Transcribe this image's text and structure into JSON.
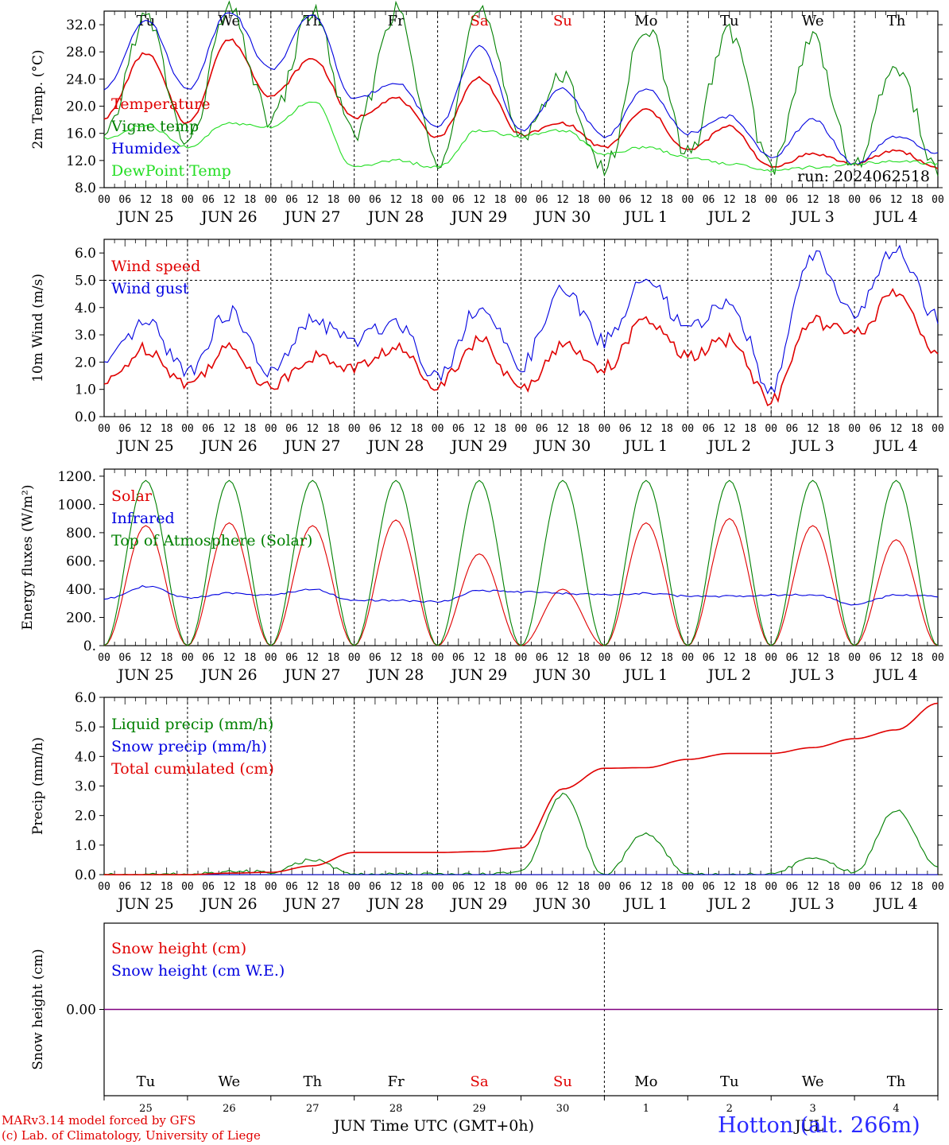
{
  "meta": {
    "run_label": "run: 2024062518",
    "model_label": "MARv3.14 model forced by GFS",
    "copyright_label": "(c) Lab. of Climatology, University of Liege",
    "xaxis_title": "Time UTC (GMT+0h)",
    "month_label_jun": "JUN",
    "month_label_jul": "JUL",
    "station_label": "Hotton (alt. 266m)"
  },
  "time_axis": {
    "hour_ticks": [
      "00",
      "06",
      "12",
      "18"
    ],
    "days": [
      {
        "date": "JUN 25",
        "weekday": "Tu",
        "num": "25",
        "weekend": false
      },
      {
        "date": "JUN 26",
        "weekday": "We",
        "num": "26",
        "weekend": false
      },
      {
        "date": "JUN 27",
        "weekday": "Th",
        "num": "27",
        "weekend": false
      },
      {
        "date": "JUN 28",
        "weekday": "Fr",
        "num": "28",
        "weekend": false
      },
      {
        "date": "JUN 29",
        "weekday": "Sa",
        "num": "29",
        "weekend": true
      },
      {
        "date": "JUN 30",
        "weekday": "Su",
        "num": "30",
        "weekend": true
      },
      {
        "date": "JUL 1",
        "weekday": "Mo",
        "num": "1",
        "weekend": false
      },
      {
        "date": "JUL 2",
        "weekday": "Tu",
        "num": "2",
        "weekend": false
      },
      {
        "date": "JUL 3",
        "weekday": "We",
        "num": "3",
        "weekend": false
      },
      {
        "date": "JUL 4",
        "weekday": "Th",
        "num": "4",
        "weekend": false
      }
    ]
  },
  "colors": {
    "red": "#e00000",
    "green": "#008000",
    "blue": "#0000e0",
    "light_green": "#22dd22",
    "purple": "#800080",
    "weekend": "#e00000"
  },
  "chart_data": [
    {
      "id": "temp",
      "type": "line",
      "ylabel": "2m Temp. (°C)",
      "ylim": [
        8,
        34
      ],
      "yticks": [
        "8.0",
        "12.0",
        "16.0",
        "20.0",
        "24.0",
        "28.0",
        "32.0"
      ],
      "ytick_values": [
        8,
        12,
        16,
        20,
        24,
        28,
        32
      ],
      "show_weekdays": true,
      "x_hours": [
        0,
        12,
        24,
        36,
        48,
        60,
        72,
        84,
        96,
        108,
        120,
        132,
        144,
        156,
        168,
        180,
        192,
        204,
        216,
        228,
        240
      ],
      "series": [
        {
          "name": "Temperature",
          "color": "red",
          "values": [
            18.3,
            27.8,
            17.5,
            29.8,
            21.5,
            27.0,
            18.3,
            21.2,
            15.5,
            24.2,
            15.8,
            17.5,
            13.9,
            19.5,
            13.5,
            17.0,
            11.0,
            13.0,
            11.5,
            13.5,
            11.0
          ]
        },
        {
          "name": "Vigne temp",
          "color": "green",
          "values": [
            15.0,
            33.0,
            14.5,
            34.0,
            18.0,
            34.0,
            15.5,
            34.0,
            12.0,
            34.0,
            16.0,
            24.0,
            10.5,
            32.0,
            13.0,
            31.0,
            11.0,
            30.0,
            11.0,
            26.0,
            10.5
          ]
        },
        {
          "name": "Humidex",
          "color": "blue",
          "values": [
            22.5,
            32.8,
            22.5,
            34.0,
            25.5,
            33.5,
            21.0,
            23.5,
            17.0,
            28.7,
            16.5,
            22.5,
            15.5,
            22.5,
            16.0,
            18.5,
            12.5,
            18.0,
            11.5,
            15.5,
            13.0
          ]
        },
        {
          "name": "DewPoint Temp",
          "color": "light_green",
          "values": [
            15.2,
            17.2,
            14.0,
            17.5,
            17.0,
            20.8,
            11.0,
            12.0,
            11.0,
            16.5,
            15.5,
            16.5,
            13.0,
            14.0,
            12.5,
            11.5,
            10.5,
            11.0,
            11.5,
            12.0,
            11.5
          ]
        }
      ]
    },
    {
      "id": "wind",
      "type": "line",
      "ylabel": "10m Wind (m/s)",
      "ylim": [
        0,
        6.5
      ],
      "yticks": [
        "0.0",
        "1.0",
        "2.0",
        "3.0",
        "4.0",
        "5.0",
        "6.0"
      ],
      "ytick_values": [
        0,
        1,
        2,
        3,
        4,
        5,
        6
      ],
      "ref_line": 5.0,
      "show_weekdays": false,
      "x_hours": [
        0,
        12,
        24,
        36,
        48,
        60,
        72,
        84,
        96,
        108,
        120,
        132,
        144,
        156,
        168,
        180,
        192,
        204,
        216,
        228,
        240
      ],
      "series": [
        {
          "name": "Wind speed",
          "color": "red",
          "values": [
            1.2,
            2.5,
            1.2,
            2.5,
            1.1,
            2.2,
            1.8,
            2.5,
            1.2,
            2.8,
            1.0,
            2.6,
            1.8,
            3.5,
            2.2,
            2.8,
            0.6,
            3.5,
            3.0,
            4.5,
            2.4
          ]
        },
        {
          "name": "Wind gust",
          "color": "blue",
          "values": [
            1.9,
            3.4,
            1.7,
            3.8,
            1.6,
            3.5,
            2.8,
            3.5,
            1.5,
            4.0,
            1.9,
            4.6,
            2.8,
            5.0,
            3.2,
            4.2,
            1.1,
            6.0,
            3.8,
            6.1,
            3.6
          ]
        }
      ]
    },
    {
      "id": "energy",
      "type": "line",
      "ylabel": "Energy fluxes (W/m²)",
      "ylim": [
        0,
        1250
      ],
      "yticks": [
        "0.",
        "200.",
        "400.",
        "600.",
        "800.",
        "1000.",
        "1200."
      ],
      "ytick_values": [
        0,
        200,
        400,
        600,
        800,
        1000,
        1200
      ],
      "show_weekdays": false,
      "x_hours": [
        0,
        12,
        24,
        36,
        48,
        60,
        72,
        84,
        96,
        108,
        120,
        132,
        144,
        156,
        168,
        180,
        192,
        204,
        216,
        228,
        240
      ],
      "series": [
        {
          "name": "Solar",
          "color": "red",
          "values": [
            0,
            850,
            0,
            870,
            0,
            850,
            0,
            890,
            0,
            650,
            0,
            400,
            0,
            870,
            0,
            900,
            0,
            850,
            0,
            750,
            0
          ]
        },
        {
          "name": "Infrared",
          "color": "blue",
          "values": [
            330,
            420,
            340,
            370,
            360,
            400,
            320,
            320,
            310,
            390,
            380,
            370,
            360,
            370,
            350,
            350,
            360,
            360,
            290,
            360,
            350
          ]
        },
        {
          "name": "Top of Atmosphere (Solar)",
          "color": "green",
          "values": [
            0,
            1170,
            0,
            1170,
            0,
            1170,
            0,
            1170,
            0,
            1170,
            0,
            1170,
            0,
            1170,
            0,
            1170,
            0,
            1170,
            0,
            1170,
            0
          ]
        }
      ]
    },
    {
      "id": "precip",
      "type": "line",
      "ylabel": "Precip (mm/h)",
      "ylim": [
        0,
        6
      ],
      "yticks": [
        "0.0",
        "1.0",
        "2.0",
        "3.0",
        "4.0",
        "5.0",
        "6.0"
      ],
      "ytick_values": [
        0,
        1,
        2,
        3,
        4,
        5,
        6
      ],
      "show_weekdays": false,
      "x_hours": [
        0,
        12,
        24,
        36,
        48,
        60,
        72,
        84,
        96,
        108,
        120,
        132,
        144,
        156,
        168,
        180,
        192,
        204,
        216,
        228,
        240
      ],
      "series": [
        {
          "name": "Liquid precip (mm/h)",
          "color": "green",
          "values": [
            0,
            0,
            0,
            0.1,
            0.1,
            0.5,
            0,
            0,
            0,
            0,
            0.1,
            2.7,
            0,
            1.4,
            0,
            0,
            0,
            0.6,
            0.1,
            2.2,
            0.3
          ]
        },
        {
          "name": "Snow precip (mm/h)",
          "color": "blue",
          "values": [
            0,
            0,
            0,
            0,
            0,
            0,
            0,
            0,
            0,
            0,
            0,
            0,
            0,
            0,
            0,
            0,
            0,
            0,
            0,
            0,
            0
          ]
        },
        {
          "name": "Total cumulated (cm)",
          "color": "red",
          "values": [
            0,
            0,
            0,
            0.05,
            0.08,
            0.3,
            0.75,
            0.75,
            0.75,
            0.78,
            0.9,
            2.9,
            3.6,
            3.62,
            3.9,
            4.1,
            4.1,
            4.3,
            4.6,
            4.9,
            5.8
          ]
        }
      ]
    },
    {
      "id": "snow",
      "type": "line",
      "ylabel": "Snow height (cm)",
      "ylim": [
        -1,
        1
      ],
      "yticks": [
        "0.00"
      ],
      "ytick_values": [
        0
      ],
      "show_weekdays": true,
      "x_hours": [
        0,
        240
      ],
      "series": [
        {
          "name": "Snow height (cm)",
          "color": "red",
          "values": [
            0,
            0
          ]
        },
        {
          "name": "Snow height (cm W.E.)",
          "color": "blue",
          "values": [
            0,
            0
          ]
        }
      ]
    }
  ]
}
